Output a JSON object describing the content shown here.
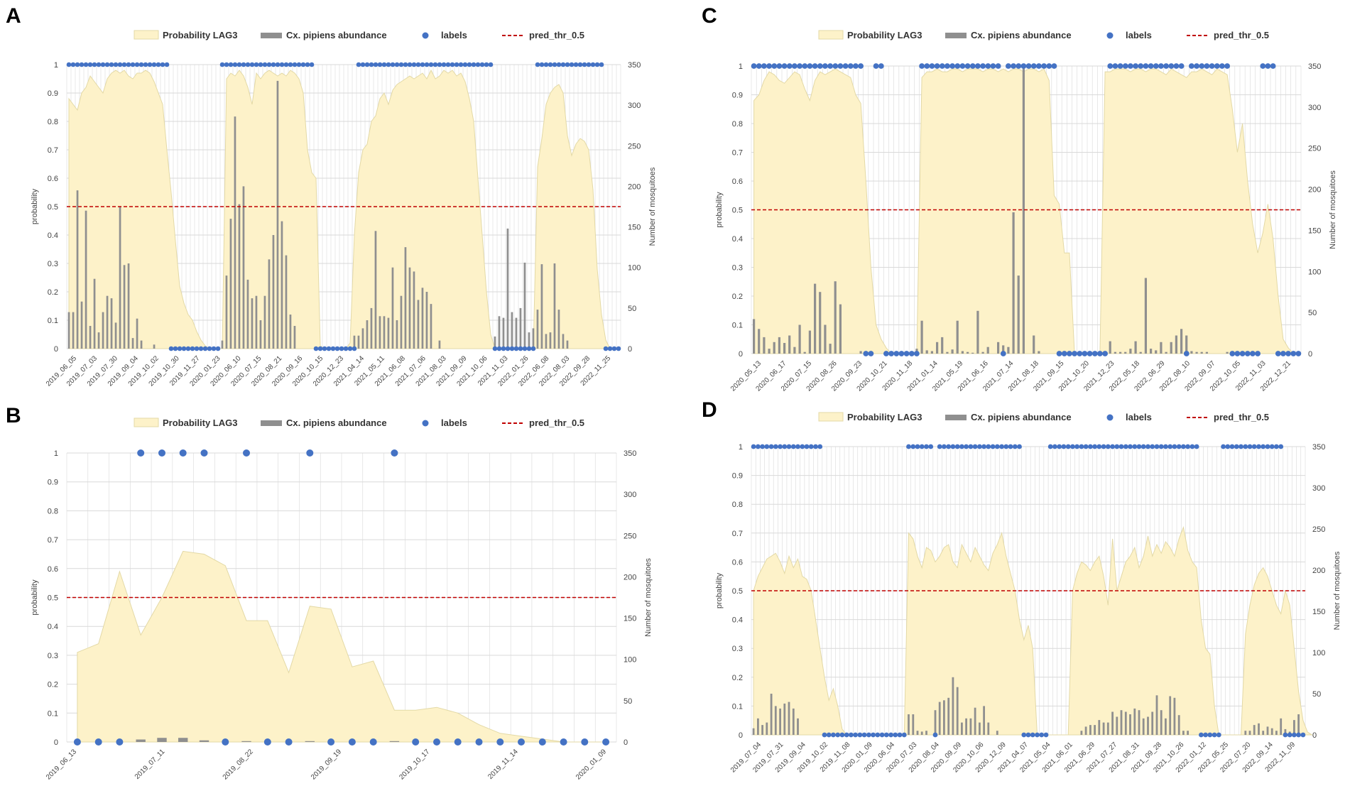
{
  "colors": {
    "area_fill": "#fdf2c9",
    "area_stroke": "#e3d9a6",
    "bar": "#8f8f8f",
    "dot": "#4472c4",
    "threshold": "#c00000",
    "grid": "#d9d9d9"
  },
  "legend": {
    "probability": "Probability LAG3",
    "abundance": "Cx. pipiens abundance",
    "labels": "labels",
    "threshold": "pred_thr_0.5"
  },
  "axis_titles": {
    "left": "probability",
    "right": "Number of mosquitoes"
  },
  "chart_data": [
    {
      "panel": "A",
      "type": "area+bar+scatter",
      "y_left_ticks": [
        "0",
        "0.1",
        "0.2",
        "0.3",
        "0.4",
        "0.5",
        "0.6",
        "0.7",
        "0.8",
        "0.9",
        "1"
      ],
      "y_right_ticks": [
        "0",
        "50",
        "100",
        "150",
        "200",
        "250",
        "300",
        "350"
      ],
      "ylim": [
        0,
        1
      ],
      "y2lim": [
        0,
        350
      ],
      "threshold": 0.5,
      "x_ticks": [
        "2019_06_05",
        "2019_07_03",
        "2019_07_30",
        "2019_09_04",
        "2019_10_02",
        "2019_10_30",
        "2019_11_27",
        "2020_01_23",
        "2020_06_10",
        "2020_07_15",
        "2020_08_21",
        "2020_09_16",
        "2020_10_15",
        "2020_12_23",
        "2021_04_14",
        "2021_05_11",
        "2021_06_08",
        "2021_07_06",
        "2021_08_03",
        "2021_09_09",
        "2021_10_06",
        "2021_11_03",
        "2022_01_26",
        "2022_06_08",
        "2022_08_03",
        "2022_09_28",
        "2022_11_25"
      ],
      "n_points": 130,
      "probability": [
        0.88,
        0.86,
        0.84,
        0.9,
        0.92,
        0.96,
        0.94,
        0.92,
        0.9,
        0.95,
        0.97,
        0.98,
        0.97,
        0.98,
        0.96,
        0.95,
        0.97,
        0.97,
        0.98,
        0.97,
        0.94,
        0.9,
        0.86,
        0.7,
        0.55,
        0.38,
        0.22,
        0.16,
        0.12,
        0.1,
        0.06,
        0.03,
        0.01,
        0,
        0,
        0,
        0,
        0.95,
        0.97,
        0.96,
        0.98,
        0.96,
        0.92,
        0.86,
        0.97,
        0.95,
        0.97,
        0.98,
        0.97,
        0.96,
        0.97,
        0.96,
        0.98,
        0.97,
        0.95,
        0.9,
        0.7,
        0.62,
        0.6,
        0.01,
        0,
        0,
        0,
        0,
        0,
        0,
        0.02,
        0.4,
        0.62,
        0.7,
        0.72,
        0.8,
        0.82,
        0.88,
        0.9,
        0.86,
        0.91,
        0.93,
        0.94,
        0.95,
        0.96,
        0.95,
        0.96,
        0.97,
        0.95,
        0.98,
        0.95,
        0.96,
        0.98,
        0.97,
        0.98,
        0.96,
        0.97,
        0.94,
        0.88,
        0.8,
        0.6,
        0.4,
        0.2,
        0.05,
        0,
        0,
        0,
        0,
        0,
        0,
        0,
        0,
        0,
        0,
        0.64,
        0.74,
        0.86,
        0.9,
        0.92,
        0.93,
        0.9,
        0.75,
        0.68,
        0.72,
        0.74,
        0.73,
        0.7,
        0.56,
        0.28,
        0.12,
        0.03,
        0,
        0,
        0
      ],
      "abundance": [
        45,
        45,
        195,
        58,
        170,
        28,
        86,
        20,
        45,
        65,
        62,
        32,
        175,
        103,
        105,
        13,
        37,
        10,
        0,
        0,
        5,
        0,
        0,
        0,
        0,
        0,
        0,
        0,
        0,
        0,
        0,
        0,
        0,
        0,
        0,
        0,
        10,
        90,
        160,
        286,
        178,
        200,
        85,
        62,
        65,
        35,
        65,
        110,
        140,
        330,
        157,
        115,
        42,
        28,
        0,
        0,
        0,
        0,
        0,
        0,
        0,
        0,
        0,
        0,
        0,
        0,
        0,
        16,
        16,
        25,
        35,
        50,
        145,
        40,
        40,
        38,
        100,
        35,
        65,
        125,
        100,
        95,
        60,
        75,
        70,
        55,
        0,
        10,
        0,
        0,
        0,
        0,
        0,
        0,
        0,
        0,
        0,
        0,
        0,
        0,
        15,
        40,
        38,
        148,
        45,
        38,
        50,
        106,
        20,
        25,
        48,
        104,
        18,
        20,
        105,
        48,
        18,
        10,
        0,
        0,
        0,
        0,
        0,
        0,
        0,
        0,
        0,
        0,
        0,
        0
      ],
      "labels": [
        1,
        1,
        1,
        1,
        1,
        1,
        1,
        1,
        1,
        1,
        1,
        1,
        1,
        1,
        1,
        1,
        1,
        1,
        1,
        1,
        1,
        1,
        1,
        1,
        0,
        0,
        0,
        0,
        0,
        0,
        0,
        0,
        0,
        0,
        0,
        0,
        1,
        1,
        1,
        1,
        1,
        1,
        1,
        1,
        1,
        1,
        1,
        1,
        1,
        1,
        1,
        1,
        1,
        1,
        1,
        1,
        1,
        1,
        0,
        0,
        0,
        0,
        0,
        0,
        0,
        0,
        0,
        0,
        1,
        1,
        1,
        1,
        1,
        1,
        1,
        1,
        1,
        1,
        1,
        1,
        1,
        1,
        1,
        1,
        1,
        1,
        1,
        1,
        1,
        1,
        1,
        1,
        1,
        1,
        1,
        1,
        1,
        1,
        1,
        1,
        0,
        0,
        0,
        0,
        0,
        0,
        0,
        0,
        0,
        0,
        1,
        1,
        1,
        1,
        1,
        1,
        1,
        1,
        1,
        1,
        1,
        1,
        1,
        1,
        1,
        1,
        0,
        0,
        0,
        0
      ]
    },
    {
      "panel": "B",
      "type": "area+bar+scatter",
      "y_left_ticks": [
        "0",
        "0.1",
        "0.2",
        "0.3",
        "0.4",
        "0.5",
        "0.6",
        "0.7",
        "0.8",
        "0.9",
        "1"
      ],
      "y_right_ticks": [
        "0",
        "50",
        "100",
        "150",
        "200",
        "250",
        "300",
        "350"
      ],
      "ylim": [
        0,
        1
      ],
      "y2lim": [
        0,
        350
      ],
      "threshold": 0.5,
      "x_ticks": [
        "2019_06_13",
        "2019_07_11",
        "2019_08_22",
        "2019_09_19",
        "2019_10_17",
        "2019_11_14",
        "2020_01_09"
      ],
      "n_points": 26,
      "probability": [
        0.31,
        0.34,
        0.59,
        0.37,
        0.5,
        0.66,
        0.65,
        0.61,
        0.42,
        0.42,
        0.24,
        0.47,
        0.46,
        0.26,
        0.28,
        0.11,
        0.11,
        0.12,
        0.1,
        0.06,
        0.03,
        0.02,
        0.01,
        0,
        0,
        0
      ],
      "abundance": [
        0,
        0,
        0,
        3,
        5,
        5,
        2,
        0,
        1,
        0,
        0,
        1,
        0,
        0,
        0,
        1,
        0,
        0,
        0,
        0,
        0,
        0,
        0,
        0,
        0,
        0
      ],
      "labels": [
        0,
        0,
        0,
        1,
        1,
        1,
        1,
        0,
        1,
        0,
        0,
        1,
        0,
        0,
        0,
        1,
        0,
        0,
        0,
        0,
        0,
        0,
        0,
        0,
        0,
        0
      ]
    },
    {
      "panel": "C",
      "type": "area+bar+scatter",
      "y_left_ticks": [
        "0",
        "0.1",
        "0.2",
        "0.3",
        "0.4",
        "0.5",
        "0.6",
        "0.7",
        "0.8",
        "0.9",
        "1"
      ],
      "y_right_ticks": [
        "0",
        "50",
        "100",
        "150",
        "200",
        "250",
        "300",
        "350"
      ],
      "ylim": [
        0,
        1
      ],
      "y2lim": [
        0,
        350
      ],
      "threshold": 0.5,
      "x_ticks": [
        "2020_05_13",
        "2020_06_17",
        "2020_07_15",
        "2020_08_26",
        "2020_09_23",
        "2020_10_21",
        "2020_11_18",
        "2021_01_14",
        "2021_05_19",
        "2021_06_16",
        "2021_07_14",
        "2021_08_18",
        "2021_09_15",
        "2021_10_20",
        "2021_12_23",
        "2022_05_18",
        "2022_06_29",
        "2022_08_10",
        "2022_09_07",
        "2022_10_05",
        "2022_11_03",
        "2022_12_21"
      ],
      "n_points": 108,
      "probability": [
        0.88,
        0.9,
        0.95,
        0.98,
        0.97,
        0.95,
        0.94,
        0.96,
        0.98,
        0.97,
        0.92,
        0.88,
        0.95,
        0.98,
        0.97,
        0.98,
        0.99,
        0.98,
        0.97,
        0.96,
        0.9,
        0.87,
        0.6,
        0.3,
        0.1,
        0.05,
        0.02,
        0,
        0,
        0,
        0,
        0,
        0,
        0.96,
        0.98,
        0.98,
        0.99,
        0.98,
        0.98,
        0.99,
        0.99,
        0.98,
        0.99,
        0.99,
        0.99,
        0.98,
        0.99,
        0.99,
        0.98,
        0.99,
        0.98,
        0.99,
        0.99,
        0.98,
        0.99,
        0.99,
        0.98,
        0.99,
        0.95,
        0.55,
        0.52,
        0.35,
        0.35,
        0,
        0,
        0,
        0,
        0,
        0,
        0.98,
        0.98,
        0.99,
        0.99,
        0.99,
        0.98,
        0.99,
        0.99,
        0.98,
        0.99,
        0.99,
        0.98,
        0.97,
        0.99,
        0.98,
        0.97,
        0.96,
        0.98,
        0.98,
        0.99,
        0.98,
        0.97,
        0.99,
        0.98,
        0.97,
        0.85,
        0.7,
        0.8,
        0.6,
        0.45,
        0.35,
        0.42,
        0.52,
        0.4,
        0.2,
        0.05,
        0.02,
        0,
        0
      ],
      "abundance": [
        42,
        30,
        20,
        6,
        14,
        20,
        13,
        22,
        8,
        35,
        2,
        28,
        85,
        75,
        35,
        12,
        88,
        60,
        0,
        0,
        0,
        3,
        0,
        3,
        0,
        0,
        0,
        0,
        0,
        0,
        0,
        0,
        6,
        40,
        4,
        3,
        14,
        20,
        2,
        5,
        40,
        3,
        2,
        1,
        52,
        2,
        8,
        0,
        14,
        10,
        8,
        172,
        95,
        350,
        0,
        22,
        3,
        0,
        0,
        0,
        0,
        0,
        0,
        0,
        0,
        0,
        0,
        0,
        0,
        0,
        15,
        2,
        2,
        2,
        6,
        15,
        2,
        92,
        6,
        4,
        14,
        2,
        14,
        22,
        30,
        22,
        3,
        2,
        2,
        2,
        0,
        0,
        0,
        2,
        0,
        0,
        0,
        0,
        0,
        0,
        0,
        0,
        0,
        0,
        0,
        0,
        0,
        0
      ],
      "labels": [
        1,
        1,
        1,
        1,
        1,
        1,
        1,
        1,
        1,
        1,
        1,
        1,
        1,
        1,
        1,
        1,
        1,
        1,
        1,
        1,
        1,
        1,
        0,
        0,
        1,
        1,
        0,
        0,
        0,
        0,
        0,
        0,
        0,
        1,
        1,
        1,
        1,
        1,
        1,
        1,
        1,
        1,
        1,
        1,
        1,
        1,
        1,
        1,
        1,
        0,
        1,
        1,
        1,
        1,
        1,
        1,
        1,
        1,
        1,
        1,
        0,
        0,
        0,
        0,
        0,
        0,
        0,
        0,
        0,
        0,
        1,
        1,
        1,
        1,
        1,
        1,
        1,
        1,
        1,
        1,
        1,
        1,
        1,
        1,
        1,
        0,
        1,
        1,
        1,
        1,
        1,
        1,
        1,
        1,
        0,
        0,
        0,
        0,
        0,
        0,
        1,
        1,
        1,
        0,
        0,
        0,
        0,
        0
      ]
    },
    {
      "panel": "D",
      "type": "area+bar+scatter",
      "y_left_ticks": [
        "0",
        "0.1",
        "0.2",
        "0.3",
        "0.4",
        "0.5",
        "0.6",
        "0.7",
        "0.8",
        "0.9",
        "1"
      ],
      "y_right_ticks": [
        "0",
        "50",
        "100",
        "150",
        "200",
        "250",
        "300",
        "350"
      ],
      "ylim": [
        0,
        1
      ],
      "y2lim": [
        0,
        350
      ],
      "threshold": 0.5,
      "x_ticks": [
        "2019_07_04",
        "2019_07_31",
        "2019_09_04",
        "2019_10_02",
        "2019_11_08",
        "2020_01_09",
        "2020_06_04",
        "2020_07_03",
        "2020_08_04",
        "2020_09_09",
        "2020_10_06",
        "2020_12_09",
        "2021_04_07",
        "2021_05_04",
        "2021_06_01",
        "2021_06_29",
        "2021_07_27",
        "2021_08_31",
        "2021_09_28",
        "2021_10_26",
        "2022_01_12",
        "2022_05_25",
        "2022_07_20",
        "2022_09_14",
        "2022_11_09"
      ],
      "n_points": 125,
      "probability": [
        0.5,
        0.55,
        0.58,
        0.61,
        0.62,
        0.63,
        0.6,
        0.56,
        0.62,
        0.58,
        0.61,
        0.55,
        0.54,
        0.5,
        0.4,
        0.3,
        0.2,
        0.12,
        0.16,
        0.1,
        0.02,
        0,
        0,
        0,
        0,
        0,
        0,
        0,
        0,
        0,
        0,
        0,
        0,
        0,
        0,
        0.7,
        0.68,
        0.62,
        0.58,
        0.65,
        0.64,
        0.6,
        0.62,
        0.65,
        0.66,
        0.6,
        0.58,
        0.66,
        0.63,
        0.6,
        0.65,
        0.62,
        0.59,
        0.57,
        0.63,
        0.66,
        0.7,
        0.62,
        0.56,
        0.5,
        0.4,
        0.33,
        0.38,
        0.3,
        0,
        0,
        0,
        0,
        0,
        0,
        0,
        0,
        0.5,
        0.56,
        0.6,
        0.59,
        0.57,
        0.6,
        0.62,
        0.55,
        0.45,
        0.68,
        0.5,
        0.55,
        0.6,
        0.62,
        0.65,
        0.58,
        0.62,
        0.69,
        0.62,
        0.66,
        0.63,
        0.67,
        0.65,
        0.62,
        0.68,
        0.72,
        0.64,
        0.6,
        0.58,
        0.4,
        0.3,
        0.28,
        0.1,
        0,
        0,
        0,
        0,
        0,
        0,
        0.35,
        0.45,
        0.52,
        0.56,
        0.58,
        0.55,
        0.5,
        0.45,
        0.42,
        0.5,
        0.45,
        0.3,
        0.15,
        0.05,
        0.01,
        0
      ],
      "abundance": [
        8,
        20,
        12,
        15,
        50,
        35,
        32,
        38,
        40,
        32,
        20,
        0,
        0,
        0,
        0,
        0,
        0,
        0,
        0,
        0,
        0,
        0,
        0,
        0,
        0,
        0,
        0,
        0,
        0,
        0,
        0,
        0,
        0,
        0,
        0,
        25,
        25,
        5,
        4,
        5,
        0,
        30,
        40,
        42,
        45,
        70,
        58,
        15,
        20,
        20,
        33,
        15,
        35,
        15,
        0,
        5,
        0,
        0,
        0,
        0,
        0,
        0,
        0,
        0,
        0,
        0,
        0,
        0,
        0,
        0,
        0,
        0,
        0,
        0,
        5,
        10,
        12,
        12,
        18,
        15,
        15,
        28,
        22,
        30,
        28,
        25,
        32,
        30,
        20,
        22,
        28,
        48,
        30,
        20,
        47,
        45,
        24,
        5,
        5,
        0,
        0,
        0,
        0,
        0,
        0,
        0,
        0,
        0,
        0,
        0,
        0,
        5,
        5,
        12,
        14,
        5,
        10,
        8,
        5,
        20,
        7,
        4,
        18,
        25,
        0,
        0,
        0,
        0
      ],
      "labels": [
        1,
        1,
        1,
        1,
        1,
        1,
        1,
        1,
        1,
        1,
        1,
        1,
        1,
        1,
        1,
        1,
        0,
        0,
        0,
        0,
        0,
        0,
        0,
        0,
        0,
        0,
        0,
        0,
        0,
        0,
        0,
        0,
        0,
        0,
        0,
        1,
        1,
        1,
        1,
        1,
        1,
        0,
        1,
        1,
        1,
        1,
        1,
        1,
        1,
        1,
        1,
        1,
        1,
        1,
        1,
        1,
        1,
        1,
        1,
        1,
        1,
        0,
        0,
        0,
        0,
        0,
        0,
        1,
        1,
        1,
        1,
        1,
        1,
        1,
        1,
        1,
        1,
        1,
        1,
        1,
        1,
        1,
        1,
        1,
        1,
        1,
        1,
        1,
        1,
        1,
        1,
        1,
        1,
        1,
        1,
        1,
        1,
        1,
        1,
        1,
        1,
        0,
        0,
        0,
        0,
        0,
        1,
        1,
        1,
        1,
        1,
        1,
        1,
        1,
        1,
        1,
        1,
        1,
        1,
        1,
        0,
        0,
        0,
        0,
        0
      ]
    }
  ]
}
